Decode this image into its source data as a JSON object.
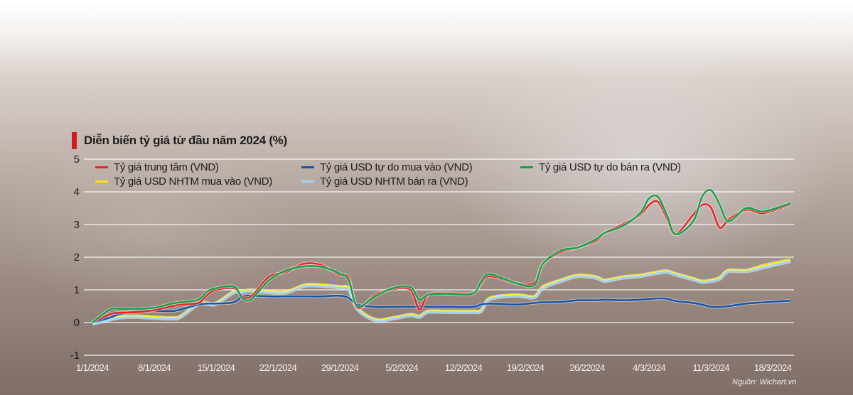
{
  "chart_data": {
    "type": "line",
    "title": "Diễn biến tỷ giá từ đầu năm 2024 (%)",
    "xlabel": "",
    "ylabel": "",
    "ylim": [
      -1,
      5
    ],
    "yticks": [
      "5",
      "4",
      "3",
      "2",
      "1",
      "0",
      "-1"
    ],
    "xticks": [
      "1/1/2024",
      "8/1/2024",
      "15/1/2024",
      "22/1/2024",
      "29/1/2024",
      "5/2/2024",
      "12/2/2024",
      "19/2/2024",
      "26/22024",
      "4/3/2024",
      "11/3/2024",
      "18/3/2024"
    ],
    "grid": true,
    "legend_position": "top",
    "x": [
      "1/1",
      "3/1",
      "4/1",
      "6/1",
      "8/1",
      "10/1",
      "11/1",
      "13/1",
      "14/1",
      "15/1",
      "17/1",
      "18/1",
      "19/1",
      "21/1",
      "23/1",
      "25/1",
      "27/1",
      "29/1",
      "30/1",
      "31/1",
      "2/2",
      "4/2",
      "6/2",
      "7/2",
      "8/2",
      "10/2",
      "13/2",
      "14/2",
      "15/2",
      "18/2",
      "20/2",
      "21/2",
      "23/2",
      "25/2",
      "27/2",
      "28/2",
      "1/3",
      "3/3",
      "4/3",
      "5/3",
      "6/3",
      "7/3",
      "9/3",
      "10/3",
      "11/3",
      "12/3",
      "13/3",
      "15/3",
      "17/3",
      "20/3"
    ],
    "series": [
      {
        "name": "Tỷ giá trung tâm (VND)",
        "color": "#e3262b",
        "values": [
          0,
          0.25,
          0.3,
          0.32,
          0.38,
          0.5,
          0.55,
          0.6,
          0.85,
          1.0,
          1.05,
          0.8,
          0.8,
          1.4,
          1.55,
          1.8,
          1.75,
          1.45,
          1.38,
          0.45,
          0.85,
          1.02,
          1.0,
          0.4,
          0.85,
          0.9,
          0.9,
          1.2,
          1.42,
          1.2,
          1.22,
          1.8,
          2.15,
          2.3,
          2.5,
          2.75,
          3.0,
          3.3,
          3.6,
          3.7,
          3.2,
          2.7,
          3.3,
          3.6,
          3.52,
          2.9,
          3.15,
          3.45,
          3.35,
          3.62
        ]
      },
      {
        "name": "Tỷ giá USD tự do mua vào (VND)",
        "color": "#1656a8",
        "values": [
          0,
          0.15,
          0.25,
          0.35,
          0.36,
          0.35,
          0.4,
          0.55,
          0.58,
          0.58,
          0.62,
          0.8,
          0.82,
          0.8,
          0.8,
          0.8,
          0.8,
          0.82,
          0.75,
          0.55,
          0.48,
          0.48,
          0.48,
          0.5,
          0.48,
          0.48,
          0.48,
          0.55,
          0.58,
          0.55,
          0.6,
          0.62,
          0.63,
          0.68,
          0.68,
          0.7,
          0.68,
          0.7,
          0.72,
          0.74,
          0.73,
          0.66,
          0.6,
          0.55,
          0.48,
          0.48,
          0.5,
          0.58,
          0.62,
          0.67
        ]
      },
      {
        "name": "Tỷ giá USD tự do bán ra (VND)",
        "color": "#1a9f48",
        "values": [
          0,
          0.4,
          0.42,
          0.42,
          0.45,
          0.58,
          0.62,
          0.7,
          0.95,
          1.05,
          1.1,
          0.75,
          0.72,
          1.3,
          1.6,
          1.72,
          1.7,
          1.5,
          1.3,
          0.5,
          0.8,
          1.05,
          1.08,
          0.7,
          0.85,
          0.88,
          0.88,
          1.25,
          1.48,
          1.2,
          1.15,
          1.8,
          2.2,
          2.3,
          2.55,
          2.75,
          2.95,
          3.35,
          3.8,
          3.85,
          3.3,
          2.7,
          3.1,
          3.85,
          4.05,
          3.6,
          3.1,
          3.5,
          3.4,
          3.65
        ]
      },
      {
        "name": "Tỷ giá USD NHTM mua vào (VND)",
        "color": "#fbe600",
        "values": [
          0,
          0.12,
          0.18,
          0.2,
          0.17,
          0.15,
          0.2,
          0.6,
          0.6,
          0.6,
          0.95,
          0.97,
          1.0,
          0.95,
          0.95,
          1.15,
          1.15,
          1.1,
          1.05,
          0.45,
          0.1,
          0.15,
          0.25,
          0.2,
          0.35,
          0.35,
          0.35,
          0.38,
          0.75,
          0.85,
          0.8,
          1.1,
          1.3,
          1.45,
          1.4,
          1.3,
          1.4,
          1.45,
          1.5,
          1.55,
          1.58,
          1.5,
          1.35,
          1.27,
          1.3,
          1.38,
          1.6,
          1.6,
          1.75,
          1.92
        ]
      },
      {
        "name": "Tỷ giá USD NHTM bán ra (VND)",
        "color": "#9fd3f2",
        "values": [
          -0.05,
          0.08,
          0.14,
          0.16,
          0.13,
          0.11,
          0.16,
          0.56,
          0.56,
          0.56,
          0.91,
          0.93,
          0.96,
          0.91,
          0.91,
          1.11,
          1.11,
          1.06,
          1.0,
          0.4,
          0.06,
          0.11,
          0.21,
          0.16,
          0.31,
          0.31,
          0.31,
          0.34,
          0.71,
          0.81,
          0.76,
          1.05,
          1.26,
          1.41,
          1.36,
          1.26,
          1.36,
          1.41,
          1.46,
          1.51,
          1.54,
          1.46,
          1.31,
          1.23,
          1.26,
          1.33,
          1.56,
          1.56,
          1.68,
          1.87
        ]
      }
    ]
  },
  "source": "Nguồn: Wichart.vn"
}
